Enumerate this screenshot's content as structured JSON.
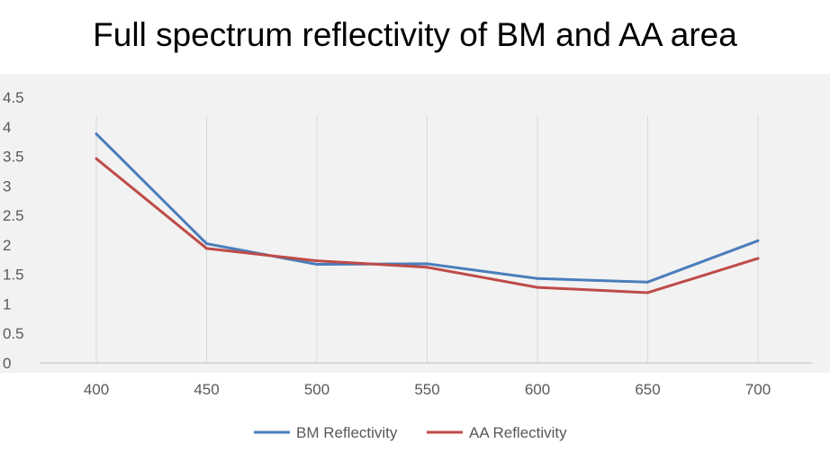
{
  "chart_data": {
    "type": "line",
    "title": "Full spectrum reflectivity of BM and AA area",
    "xlabel": "",
    "ylabel": "",
    "categories": [
      "400",
      "450",
      "500",
      "550",
      "600",
      "650",
      "700"
    ],
    "ylim": [
      0,
      4.5
    ],
    "yticks": [
      "0",
      "0.5",
      "1",
      "1.5",
      "2",
      "2.5",
      "3",
      "3.5",
      "4",
      "4.5"
    ],
    "grid": "vertical",
    "legend_position": "bottom",
    "series": [
      {
        "name": "BM Reflectivity",
        "color": "#4a7ebb",
        "values": [
          3.88,
          2.02,
          1.67,
          1.68,
          1.43,
          1.37,
          2.07
        ]
      },
      {
        "name": "AA Reflectivity",
        "color": "#be4b48",
        "values": [
          3.46,
          1.94,
          1.73,
          1.62,
          1.28,
          1.19,
          1.77
        ]
      }
    ]
  }
}
